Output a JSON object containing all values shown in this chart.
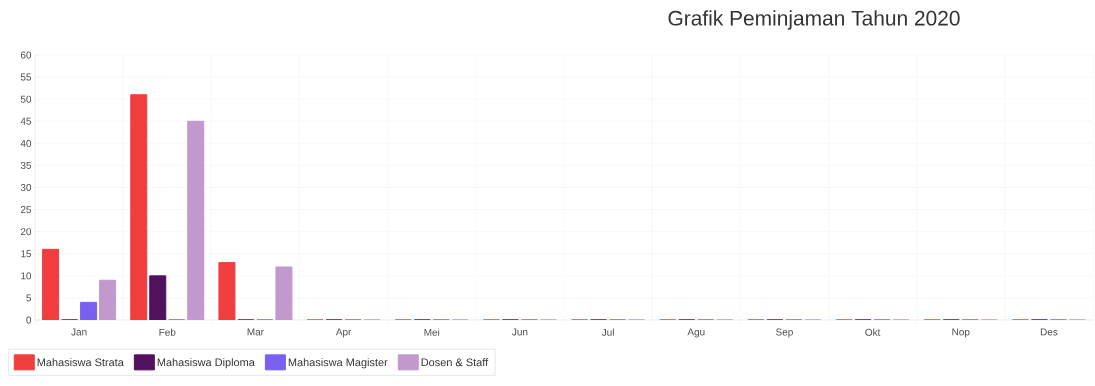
{
  "chart_data": {
    "type": "bar",
    "title": "Grafik Peminjaman Tahun 2020",
    "categories": [
      "Jan",
      "Feb",
      "Mar",
      "Apr",
      "Mei",
      "Jun",
      "Jul",
      "Agu",
      "Sep",
      "Okt",
      "Nop",
      "Des"
    ],
    "series": [
      {
        "name": "Mahasiswa Strata",
        "color": "#f03e3e",
        "values": [
          16,
          51,
          13,
          0,
          0,
          0,
          0,
          0,
          0,
          0,
          0,
          0
        ]
      },
      {
        "name": "Mahasiswa Diploma",
        "color": "#52115e",
        "values": [
          0,
          10,
          0,
          0,
          0,
          0,
          0,
          0,
          0,
          0,
          0,
          0
        ]
      },
      {
        "name": "Mahasiswa Magister",
        "color": "#7b5ff0",
        "values": [
          4,
          0,
          0,
          0,
          0,
          0,
          0,
          0,
          0,
          0,
          0,
          0
        ]
      },
      {
        "name": "Dosen & Staff",
        "color": "#c199cc",
        "values": [
          9,
          45,
          12,
          0,
          0,
          0,
          0,
          0,
          0,
          0,
          0,
          0
        ]
      }
    ],
    "ylim": [
      0,
      60
    ],
    "yticks": [
      0,
      5,
      10,
      15,
      20,
      25,
      30,
      35,
      40,
      45,
      50,
      55,
      60
    ],
    "grid": true,
    "legend": "bottom"
  }
}
